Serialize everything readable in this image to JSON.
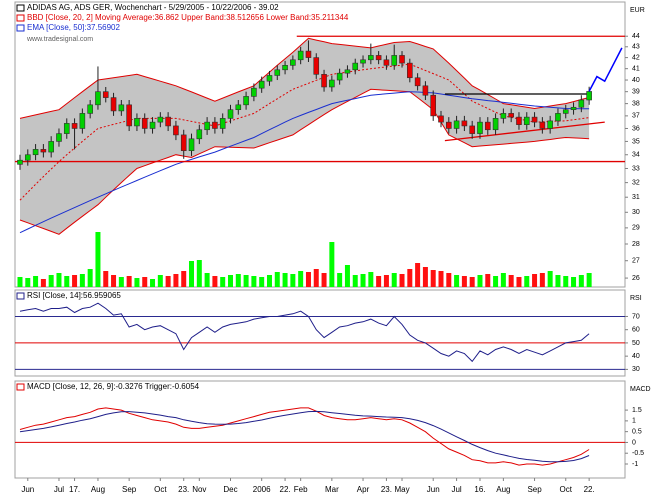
{
  "chart_data": [
    {
      "type": "candlestick",
      "title": "ADIDAS AG, ADS GER, Wochenchart - 5/29/2005 - 10/22/2006 - 39.02",
      "source": "www.tradesignal.com",
      "ylabel": "EUR",
      "log_scale": true,
      "ylim": [
        25.5,
        47.4
      ],
      "yticks": [
        26,
        27,
        28,
        29,
        30,
        31,
        32,
        33,
        34,
        35,
        36,
        37,
        38,
        39,
        40,
        41,
        42,
        43,
        44
      ],
      "xlim": [
        -0.64,
        77.6
      ],
      "categories": [
        null,
        "Jun",
        null,
        null,
        null,
        "Jul",
        null,
        "17.",
        null,
        null,
        "Aug",
        null,
        null,
        null,
        "Sep",
        null,
        null,
        null,
        "Oct",
        null,
        null,
        "23.",
        null,
        "Nov",
        null,
        null,
        null,
        "Dec",
        null,
        null,
        null,
        "2006",
        null,
        null,
        "22.",
        null,
        "Feb",
        null,
        null,
        null,
        "Mar",
        null,
        null,
        null,
        "Apr",
        null,
        null,
        "23.",
        null,
        "May",
        null,
        null,
        null,
        "Jun",
        null,
        null,
        "Jul",
        null,
        null,
        "16.",
        null,
        null,
        "Aug",
        null,
        null,
        null,
        "Sep",
        null,
        null,
        null,
        "Oct",
        null,
        null,
        "22."
      ],
      "open": [
        33.3,
        33.6,
        34.0,
        34.4,
        34.2,
        35.0,
        35.6,
        36.4,
        36.0,
        37.2,
        37.9,
        39.0,
        38.5,
        37.4,
        37.9,
        36.2,
        36.8,
        36.0,
        36.5,
        36.9,
        36.2,
        35.5,
        34.3,
        35.2,
        35.9,
        36.5,
        36.0,
        36.8,
        37.5,
        37.9,
        38.6,
        39.3,
        39.9,
        40.4,
        40.9,
        41.3,
        41.8,
        42.6,
        42.0,
        40.5,
        39.4,
        40.0,
        40.6,
        40.9,
        41.5,
        41.8,
        42.2,
        41.8,
        41.3,
        42.2,
        41.5,
        40.2,
        39.5,
        38.7,
        37.0,
        36.5,
        36.0,
        36.6,
        36.2,
        35.6,
        36.5,
        35.9,
        36.8,
        37.2,
        36.9,
        36.3,
        36.9,
        36.5,
        36.0,
        36.6,
        37.2,
        37.5,
        37.7,
        38.3
      ],
      "high": [
        34.0,
        34.4,
        34.8,
        34.8,
        35.4,
        36.0,
        36.8,
        36.8,
        37.6,
        38.3,
        41.2,
        39.4,
        38.9,
        38.3,
        38.3,
        37.2,
        37.2,
        36.9,
        37.3,
        37.3,
        36.6,
        35.9,
        35.6,
        36.3,
        36.9,
        36.9,
        37.2,
        37.9,
        38.3,
        39.0,
        39.7,
        40.3,
        40.8,
        41.3,
        41.7,
        42.2,
        43.0,
        43.6,
        42.4,
        40.9,
        40.4,
        41.0,
        41.3,
        41.9,
        42.2,
        43.3,
        42.6,
        42.2,
        43.2,
        42.6,
        41.9,
        40.6,
        39.9,
        39.1,
        37.4,
        36.9,
        37.0,
        37.0,
        36.6,
        36.9,
        36.9,
        37.2,
        37.6,
        37.6,
        37.3,
        37.3,
        37.3,
        36.9,
        37.0,
        37.6,
        37.9,
        38.1,
        38.7,
        39.42
      ],
      "low": [
        32.9,
        33.2,
        33.6,
        33.8,
        33.8,
        34.6,
        35.2,
        34.4,
        35.6,
        36.8,
        37.5,
        38.1,
        37.0,
        37.0,
        35.8,
        35.8,
        35.6,
        35.6,
        36.1,
        35.8,
        35.1,
        33.7,
        33.9,
        34.8,
        35.5,
        35.6,
        35.6,
        36.4,
        37.1,
        37.5,
        38.2,
        38.9,
        39.5,
        40.0,
        40.5,
        40.9,
        41.4,
        41.6,
        40.1,
        39.0,
        39.0,
        39.6,
        40.2,
        40.5,
        41.1,
        41.4,
        41.4,
        40.9,
        40.9,
        41.1,
        39.8,
        39.1,
        38.3,
        36.6,
        36.1,
        35.6,
        35.6,
        35.8,
        35.2,
        35.2,
        35.5,
        35.5,
        36.4,
        36.5,
        35.9,
        35.9,
        36.1,
        35.6,
        35.6,
        36.2,
        36.8,
        37.1,
        37.3,
        37.9
      ],
      "close": [
        33.6,
        34.0,
        34.4,
        34.2,
        35.0,
        35.6,
        36.4,
        36.0,
        37.2,
        37.9,
        39.0,
        38.5,
        37.4,
        37.9,
        36.2,
        36.8,
        36.0,
        36.5,
        36.9,
        36.2,
        35.5,
        34.3,
        35.2,
        35.9,
        36.5,
        36.0,
        36.8,
        37.5,
        37.9,
        38.6,
        39.3,
        39.9,
        40.4,
        40.9,
        41.3,
        41.8,
        42.6,
        42.0,
        40.5,
        39.4,
        40.0,
        40.6,
        40.9,
        41.5,
        41.8,
        42.2,
        41.8,
        41.3,
        42.2,
        41.5,
        40.2,
        39.5,
        38.7,
        37.0,
        36.5,
        36.0,
        36.6,
        36.2,
        35.6,
        36.5,
        35.9,
        36.8,
        37.2,
        36.9,
        36.3,
        36.9,
        36.5,
        36.0,
        36.6,
        37.2,
        37.5,
        37.7,
        38.3,
        39.02
      ],
      "up_color": "#00d000",
      "down_color": "#e80000",
      "volume": [
        10,
        9,
        11,
        8,
        12,
        14,
        11,
        12,
        13,
        18,
        55,
        16,
        12,
        10,
        11,
        9,
        10,
        8,
        12,
        11,
        13,
        16,
        26,
        27,
        14,
        11,
        10,
        12,
        13,
        12,
        11,
        10,
        12,
        15,
        14,
        13,
        16,
        15,
        18,
        14,
        45,
        14,
        22,
        12,
        13,
        15,
        11,
        12,
        14,
        13,
        18,
        24,
        20,
        17,
        16,
        14,
        12,
        11,
        10,
        12,
        13,
        11,
        14,
        12,
        10,
        11,
        13,
        14,
        16,
        12,
        11,
        10,
        12,
        14
      ],
      "volume_up_color": "#00ff00",
      "volume_down_color": "#ff1010",
      "indicators": [
        {
          "name": "BBD [Close, 20, 2] Moving Average:36.862 Upper Band:38.512656 Lower Band:35.211344",
          "color": "#e00000",
          "fill": "#c4c4c4",
          "middle": [
            30.8,
            31.34,
            31.88,
            32.42,
            32.96,
            33.5,
            34.0,
            34.5,
            35.0,
            35.5,
            36.0,
            36.16,
            36.32,
            36.48,
            36.64,
            36.8,
            36.8,
            36.8,
            36.8,
            36.8,
            36.8,
            36.68,
            36.56,
            36.44,
            36.32,
            36.2,
            36.4,
            36.6,
            36.8,
            37.0,
            37.2,
            37.6,
            38.0,
            38.4,
            38.8,
            39.2,
            39.46,
            39.72,
            39.98,
            40.24,
            40.5,
            40.6,
            40.7,
            40.8,
            40.9,
            41.0,
            41.08,
            41.16,
            41.24,
            41.32,
            41.4,
            41.12,
            40.84,
            40.56,
            40.28,
            40.0,
            39.4,
            38.8,
            38.2,
            37.9,
            37.6,
            37.3,
            37.0,
            36.88,
            36.75,
            36.63,
            36.5,
            36.53,
            36.55,
            36.58,
            36.6,
            36.69,
            36.77,
            36.86
          ],
          "upper": [
            36.8,
            36.94,
            37.08,
            37.22,
            37.36,
            37.5,
            38.0,
            38.5,
            39.0,
            39.5,
            40.0,
            40.1,
            40.2,
            40.3,
            40.4,
            40.5,
            40.3,
            40.1,
            39.9,
            39.7,
            39.5,
            39.24,
            38.98,
            38.72,
            38.46,
            38.2,
            38.46,
            38.72,
            38.98,
            39.24,
            39.5,
            40.1,
            40.7,
            41.3,
            41.9,
            42.5,
            43.15,
            43.8,
            43.63,
            43.47,
            43.3,
            43.22,
            43.14,
            43.06,
            42.98,
            42.9,
            43.07,
            43.23,
            43.4,
            43.45,
            43.5,
            43.27,
            43.03,
            42.8,
            42.15,
            41.5,
            40.83,
            40.17,
            39.5,
            39.13,
            38.75,
            38.38,
            38.0,
            37.9,
            37.8,
            37.7,
            37.6,
            37.7,
            37.8,
            37.9,
            38.0,
            38.17,
            38.34,
            38.51
          ],
          "lower": [
            29.5,
            29.32,
            29.14,
            28.96,
            28.78,
            28.6,
            28.98,
            29.36,
            29.74,
            30.12,
            30.5,
            31.0,
            31.5,
            32.0,
            32.5,
            33.0,
            33.2,
            33.4,
            33.6,
            33.8,
            34.0,
            33.9,
            33.8,
            34.07,
            34.33,
            34.6,
            34.58,
            34.56,
            34.54,
            34.52,
            34.5,
            34.7,
            34.9,
            35.1,
            35.3,
            35.5,
            35.9,
            36.3,
            36.7,
            37.1,
            37.5,
            37.84,
            38.18,
            38.52,
            38.86,
            39.2,
            39.16,
            39.12,
            39.08,
            39.04,
            39.0,
            38.5,
            38.0,
            37.5,
            36.5,
            35.5,
            35.2,
            34.9,
            34.6,
            34.65,
            34.7,
            34.75,
            34.8,
            34.85,
            34.9,
            34.95,
            35.0,
            35.08,
            35.15,
            35.23,
            35.3,
            35.27,
            35.24,
            35.21
          ]
        },
        {
          "name": "EMA [Close, 50]:37.56902",
          "color": "#1a2fd0",
          "values": [
            28.7,
            28.93,
            29.16,
            29.39,
            29.62,
            29.85,
            30.08,
            30.31,
            30.54,
            30.77,
            31.0,
            31.23,
            31.46,
            31.69,
            31.92,
            32.15,
            32.38,
            32.61,
            32.84,
            33.07,
            33.3,
            33.48,
            33.66,
            33.84,
            34.02,
            34.2,
            34.42,
            34.64,
            34.86,
            35.08,
            35.3,
            35.6,
            35.9,
            36.2,
            36.5,
            36.8,
            37.04,
            37.28,
            37.52,
            37.76,
            38.0,
            38.14,
            38.28,
            38.42,
            38.56,
            38.7,
            38.76,
            38.82,
            38.88,
            38.94,
            39.0,
            38.97,
            38.93,
            38.9,
            38.8,
            38.7,
            38.6,
            38.5,
            38.4,
            38.33,
            38.25,
            38.18,
            38.1,
            38.03,
            37.95,
            37.88,
            37.8,
            37.75,
            37.7,
            37.65,
            37.6,
            37.59,
            37.58,
            37.57
          ]
        }
      ],
      "projection": {
        "color": "#0000ff",
        "x": [
          73,
          74,
          75,
          77.2
        ],
        "values": [
          39.02,
          40.3,
          39.9,
          42.9
        ]
      },
      "lines": [
        {
          "color": "#e00000",
          "x": [
            35.5,
            77.6
          ],
          "values": [
            44,
            44
          ]
        },
        {
          "color": "#e00000",
          "x": [
            -0.64,
            77.6
          ],
          "values": [
            33.5,
            33.5
          ]
        },
        {
          "color": "#000000",
          "x": [
            54.5,
            73.3
          ],
          "values": [
            38.8,
            38.8
          ]
        },
        {
          "color": "#e00000",
          "x": [
            54.5,
            75
          ],
          "values": [
            35.06,
            36.5
          ]
        }
      ]
    },
    {
      "type": "line",
      "ylabel": "RSI",
      "ylim": [
        25,
        90
      ],
      "yticks": [
        30,
        40,
        50,
        60,
        70
      ],
      "levels": [
        {
          "value": 70,
          "color": "#2a2a90"
        },
        {
          "value": 50,
          "color": "#e00000"
        },
        {
          "value": 30,
          "color": "#2a2a90"
        }
      ],
      "series": [
        {
          "name": "RSI [Close, 14]:56.959065",
          "color": "#1f1f8a",
          "values": [
            74,
            75,
            76,
            74,
            76,
            76,
            77,
            73,
            76,
            77,
            80,
            76,
            71,
            72,
            62,
            64,
            60,
            62,
            63,
            60,
            57,
            45,
            54,
            58,
            62,
            58,
            62,
            64,
            65,
            66,
            68,
            69,
            70,
            70,
            71,
            72,
            74,
            70,
            60,
            54,
            58,
            62,
            63,
            65,
            66,
            68,
            65,
            63,
            70,
            64,
            56,
            52,
            50,
            46,
            42,
            40,
            44,
            42,
            36,
            44,
            41,
            45,
            47,
            45,
            42,
            45,
            43,
            41,
            44,
            47,
            50,
            51,
            52,
            56.96
          ]
        }
      ]
    },
    {
      "type": "line",
      "ylabel": "MACD",
      "ylim": [
        -1.65,
        2.85
      ],
      "yticks": [
        -1,
        -0.5,
        0,
        0.5,
        1,
        1.5
      ],
      "levels": [
        {
          "value": 0,
          "color": "#e00000"
        }
      ],
      "series": [
        {
          "name": "MACD [Close, 12, 26, 9]:-0.3276 Trigger:-0.6054",
          "color": "#e00000",
          "values": [
            0.6,
            0.7,
            0.8,
            0.85,
            0.95,
            1.05,
            1.15,
            1.2,
            1.3,
            1.4,
            1.55,
            1.6,
            1.55,
            1.5,
            1.35,
            1.25,
            1.15,
            1.05,
            1.0,
            0.95,
            0.85,
            0.7,
            0.65,
            0.65,
            0.7,
            0.75,
            0.8,
            0.9,
            1.0,
            1.1,
            1.2,
            1.3,
            1.4,
            1.45,
            1.5,
            1.55,
            1.6,
            1.6,
            1.45,
            1.25,
            1.15,
            1.1,
            1.05,
            1.05,
            1.1,
            1.15,
            1.1,
            1.05,
            1.1,
            1.05,
            0.9,
            0.7,
            0.5,
            0.2,
            -0.05,
            -0.3,
            -0.45,
            -0.6,
            -0.8,
            -0.85,
            -0.95,
            -0.95,
            -0.9,
            -0.95,
            -1.05,
            -1.0,
            -1.0,
            -1.05,
            -1.0,
            -0.9,
            -0.8,
            -0.7,
            -0.55,
            -0.3276
          ]
        },
        {
          "color": "#1f1f8a",
          "values": [
            0.5,
            0.55,
            0.6,
            0.65,
            0.72,
            0.8,
            0.88,
            0.95,
            1.03,
            1.1,
            1.2,
            1.3,
            1.37,
            1.42,
            1.43,
            1.4,
            1.37,
            1.32,
            1.27,
            1.2,
            1.15,
            1.05,
            0.98,
            0.92,
            0.87,
            0.85,
            0.84,
            0.85,
            0.88,
            0.92,
            0.98,
            1.04,
            1.12,
            1.2,
            1.26,
            1.32,
            1.38,
            1.43,
            1.44,
            1.42,
            1.38,
            1.34,
            1.3,
            1.26,
            1.23,
            1.22,
            1.2,
            1.18,
            1.17,
            1.15,
            1.1,
            1.02,
            0.92,
            0.78,
            0.62,
            0.44,
            0.26,
            0.09,
            -0.09,
            -0.24,
            -0.38,
            -0.5,
            -0.58,
            -0.66,
            -0.74,
            -0.79,
            -0.83,
            -0.87,
            -0.9,
            -0.9,
            -0.88,
            -0.84,
            -0.75,
            -0.6054
          ]
        }
      ]
    }
  ]
}
